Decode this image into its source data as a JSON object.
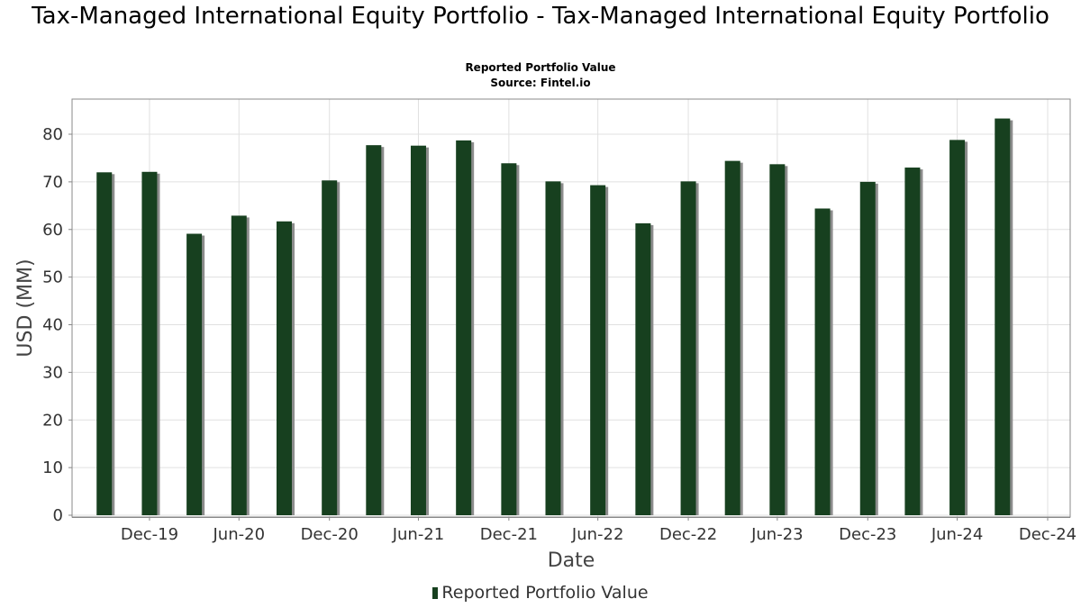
{
  "title": "Tax-Managed International Equity Portfolio - Tax-Managed International Equity Portfolio",
  "subtitle": "Reported Portfolio Value",
  "source": "Source: Fintel.io",
  "colors": {
    "bar": "#17401f",
    "shadow": "#8c8c8c",
    "grid": "#e0e0e0",
    "axis": "#888888"
  },
  "chart_data": {
    "type": "bar",
    "title": "Tax-Managed International Equity Portfolio - Tax-Managed International Equity Portfolio",
    "subtitle": "Reported Portfolio Value",
    "xlabel": "Date",
    "ylabel": "USD (MM)",
    "ylim": [
      0,
      87
    ],
    "yticks": [
      0,
      10,
      20,
      30,
      40,
      50,
      60,
      70,
      80
    ],
    "xlim": [
      "2019-08-01",
      "2024-12-31"
    ],
    "xticks": [
      {
        "date": "2019-12-31",
        "label": "Dec-19"
      },
      {
        "date": "2020-06-30",
        "label": "Jun-20"
      },
      {
        "date": "2020-12-31",
        "label": "Dec-20"
      },
      {
        "date": "2021-06-30",
        "label": "Jun-21"
      },
      {
        "date": "2021-12-31",
        "label": "Dec-21"
      },
      {
        "date": "2022-06-30",
        "label": "Jun-22"
      },
      {
        "date": "2022-12-31",
        "label": "Dec-22"
      },
      {
        "date": "2023-06-30",
        "label": "Jun-23"
      },
      {
        "date": "2023-12-31",
        "label": "Dec-23"
      },
      {
        "date": "2024-06-30",
        "label": "Jun-24"
      },
      {
        "date": "2024-12-31",
        "label": "Dec-24"
      }
    ],
    "grid": true,
    "legend": "bottom-center",
    "series": [
      {
        "name": "Reported Portfolio Value",
        "x": [
          "2019-09-30",
          "2019-12-31",
          "2020-03-31",
          "2020-06-30",
          "2020-09-30",
          "2020-12-31",
          "2021-03-31",
          "2021-06-30",
          "2021-09-30",
          "2021-12-31",
          "2022-03-31",
          "2022-06-30",
          "2022-09-30",
          "2022-12-31",
          "2023-03-31",
          "2023-06-30",
          "2023-09-30",
          "2023-12-31",
          "2024-03-31",
          "2024-06-30",
          "2024-09-30"
        ],
        "values": [
          72.0,
          72.1,
          59.1,
          62.9,
          61.7,
          70.3,
          77.7,
          77.6,
          78.7,
          73.9,
          70.1,
          69.3,
          61.3,
          70.1,
          74.4,
          73.7,
          64.4,
          70.0,
          73.0,
          78.8,
          83.3
        ]
      }
    ]
  },
  "legend_label": "Reported Portfolio Value"
}
